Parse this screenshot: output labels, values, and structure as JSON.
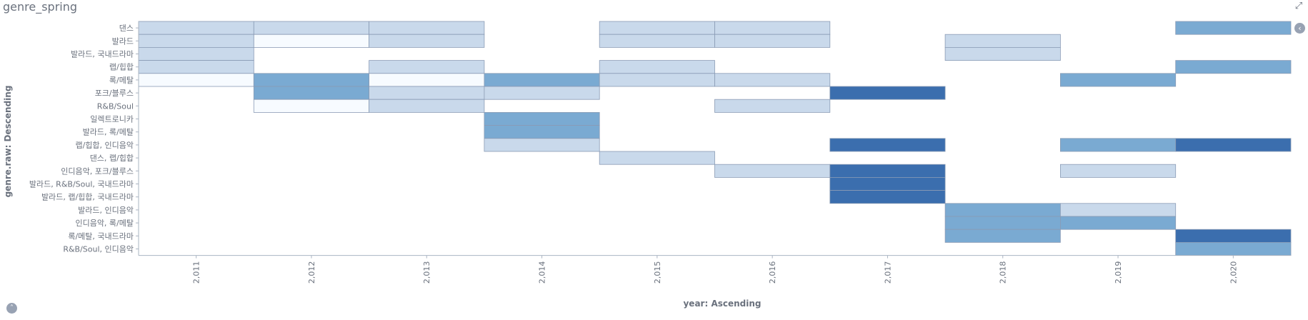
{
  "panel": {
    "title": "genre_spring",
    "expand_icon": "expand-icon",
    "legend_toggle_icon": "chevron-left-icon",
    "collapse_toggle_icon": "chevron-up-icon"
  },
  "colors": {
    "level_1": "#f7fbff",
    "level_2": "#c9d9eb",
    "level_3": "#7aaad2",
    "level_4": "#3b6eae",
    "cell_stroke": "#8a9bb5",
    "axis": "#aab4c2"
  },
  "chart_data": {
    "type": "heatmap",
    "xlabel": "year: Ascending",
    "ylabel": "genre.raw: Descending",
    "x": [
      "2,011",
      "2,012",
      "2,013",
      "2,014",
      "2,015",
      "2,016",
      "2,017",
      "2,018",
      "2,019",
      "2,020"
    ],
    "y": [
      "댄스",
      "발라드",
      "발라드, 국내드라마",
      "랩/힙합",
      "록/메탈",
      "포크/블루스",
      "R&B/Soul",
      "일렉트로니카",
      "발라드, 록/메탈",
      "랩/힙합, 인디음악",
      "댄스, 랩/힙합",
      "인디음악, 포크/블루스",
      "발라드, R&B/Soul, 국내드라마",
      "발라드, 랩/힙합, 국내드라마",
      "발라드, 인디음악",
      "인디음악, 록/메탈",
      "록/메탈, 국내드라마",
      "R&B/Soul, 인디음악"
    ],
    "value_scale": "ordinal intensity 1 (lightest) to 4 (darkest)",
    "cells": [
      {
        "x": "2,011",
        "y": "댄스",
        "value": 2
      },
      {
        "x": "2,012",
        "y": "댄스",
        "value": 2
      },
      {
        "x": "2,013",
        "y": "댄스",
        "value": 2
      },
      {
        "x": "2,015",
        "y": "댄스",
        "value": 2
      },
      {
        "x": "2,016",
        "y": "댄스",
        "value": 2
      },
      {
        "x": "2,020",
        "y": "댄스",
        "value": 3
      },
      {
        "x": "2,011",
        "y": "발라드",
        "value": 2
      },
      {
        "x": "2,012",
        "y": "발라드",
        "value": 1
      },
      {
        "x": "2,013",
        "y": "발라드",
        "value": 2
      },
      {
        "x": "2,015",
        "y": "발라드",
        "value": 2
      },
      {
        "x": "2,016",
        "y": "발라드",
        "value": 2
      },
      {
        "x": "2,018",
        "y": "발라드",
        "value": 2
      },
      {
        "x": "2,011",
        "y": "발라드, 국내드라마",
        "value": 2
      },
      {
        "x": "2,018",
        "y": "발라드, 국내드라마",
        "value": 2
      },
      {
        "x": "2,011",
        "y": "랩/힙합",
        "value": 2
      },
      {
        "x": "2,013",
        "y": "랩/힙합",
        "value": 2
      },
      {
        "x": "2,015",
        "y": "랩/힙합",
        "value": 2
      },
      {
        "x": "2,020",
        "y": "랩/힙합",
        "value": 3
      },
      {
        "x": "2,011",
        "y": "록/메탈",
        "value": 1
      },
      {
        "x": "2,012",
        "y": "록/메탈",
        "value": 3
      },
      {
        "x": "2,013",
        "y": "록/메탈",
        "value": 1
      },
      {
        "x": "2,014",
        "y": "록/메탈",
        "value": 3
      },
      {
        "x": "2,015",
        "y": "록/메탈",
        "value": 2
      },
      {
        "x": "2,016",
        "y": "록/메탈",
        "value": 2
      },
      {
        "x": "2,019",
        "y": "록/메탈",
        "value": 3
      },
      {
        "x": "2,012",
        "y": "포크/블루스",
        "value": 3
      },
      {
        "x": "2,013",
        "y": "포크/블루스",
        "value": 2
      },
      {
        "x": "2,014",
        "y": "포크/블루스",
        "value": 2
      },
      {
        "x": "2,017",
        "y": "포크/블루스",
        "value": 4
      },
      {
        "x": "2,012",
        "y": "R&B/Soul",
        "value": 1
      },
      {
        "x": "2,013",
        "y": "R&B/Soul",
        "value": 2
      },
      {
        "x": "2,016",
        "y": "R&B/Soul",
        "value": 2
      },
      {
        "x": "2,014",
        "y": "일렉트로니카",
        "value": 3
      },
      {
        "x": "2,014",
        "y": "발라드, 록/메탈",
        "value": 3
      },
      {
        "x": "2,014",
        "y": "랩/힙합, 인디음악",
        "value": 2
      },
      {
        "x": "2,017",
        "y": "랩/힙합, 인디음악",
        "value": 4
      },
      {
        "x": "2,019",
        "y": "랩/힙합, 인디음악",
        "value": 3
      },
      {
        "x": "2,020",
        "y": "랩/힙합, 인디음악",
        "value": 4
      },
      {
        "x": "2,015",
        "y": "댄스, 랩/힙합",
        "value": 2
      },
      {
        "x": "2,016",
        "y": "인디음악, 포크/블루스",
        "value": 2
      },
      {
        "x": "2,017",
        "y": "인디음악, 포크/블루스",
        "value": 4
      },
      {
        "x": "2,019",
        "y": "인디음악, 포크/블루스",
        "value": 2
      },
      {
        "x": "2,017",
        "y": "발라드, R&B/Soul, 국내드라마",
        "value": 4
      },
      {
        "x": "2,017",
        "y": "발라드, 랩/힙합, 국내드라마",
        "value": 4
      },
      {
        "x": "2,018",
        "y": "발라드, 인디음악",
        "value": 3
      },
      {
        "x": "2,019",
        "y": "발라드, 인디음악",
        "value": 2
      },
      {
        "x": "2,018",
        "y": "인디음악, 록/메탈",
        "value": 3
      },
      {
        "x": "2,019",
        "y": "인디음악, 록/메탈",
        "value": 3
      },
      {
        "x": "2,018",
        "y": "록/메탈, 국내드라마",
        "value": 3
      },
      {
        "x": "2,020",
        "y": "록/메탈, 국내드라마",
        "value": 4
      },
      {
        "x": "2,020",
        "y": "R&B/Soul, 인디음악",
        "value": 3
      }
    ],
    "grid": false,
    "legend": "hidden"
  }
}
